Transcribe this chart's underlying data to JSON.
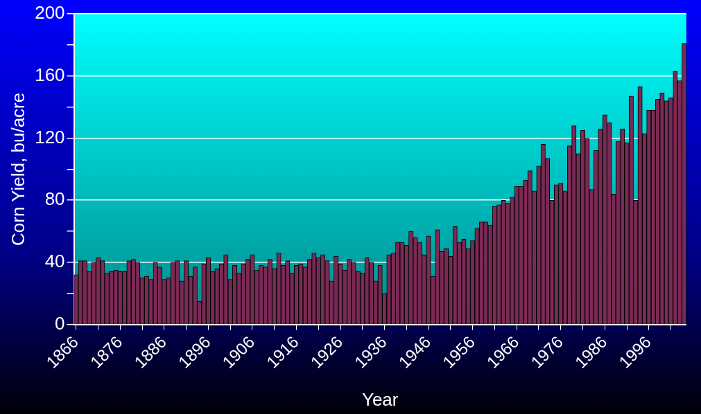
{
  "chart_data": {
    "type": "bar",
    "xlabel": "Year",
    "ylabel": "Corn Yield, bu/acre",
    "categories": [
      "1866",
      null,
      null,
      null,
      null,
      null,
      null,
      null,
      null,
      null,
      "1876",
      null,
      null,
      null,
      null,
      null,
      null,
      null,
      null,
      null,
      "1886",
      null,
      null,
      null,
      null,
      null,
      null,
      null,
      null,
      null,
      "1896",
      null,
      null,
      null,
      null,
      null,
      null,
      null,
      null,
      null,
      "1906",
      null,
      null,
      null,
      null,
      null,
      null,
      null,
      null,
      null,
      "1916",
      null,
      null,
      null,
      null,
      null,
      null,
      null,
      null,
      null,
      "1926",
      null,
      null,
      null,
      null,
      null,
      null,
      null,
      null,
      null,
      "1936",
      null,
      null,
      null,
      null,
      null,
      null,
      null,
      null,
      null,
      "1946",
      null,
      null,
      null,
      null,
      null,
      null,
      null,
      null,
      null,
      "1956",
      null,
      null,
      null,
      null,
      null,
      null,
      null,
      null,
      null,
      "1966",
      null,
      null,
      null,
      null,
      null,
      null,
      null,
      null,
      null,
      "1976",
      null,
      null,
      null,
      null,
      null,
      null,
      null,
      null,
      null,
      "1986",
      null,
      null,
      null,
      null,
      null,
      null,
      null,
      null,
      null,
      "1996",
      null,
      null,
      null,
      null,
      null,
      null,
      null,
      null
    ],
    "values": [
      32,
      41,
      41,
      34,
      40,
      43,
      41,
      33,
      34,
      35,
      34,
      34,
      41,
      42,
      40,
      30,
      31,
      29,
      40,
      37,
      29,
      30,
      40,
      41,
      28,
      41,
      31,
      37,
      15,
      39,
      43,
      34,
      36,
      39,
      45,
      29,
      38,
      33,
      39,
      42,
      45,
      35,
      38,
      37,
      42,
      36,
      46,
      38,
      41,
      33,
      38,
      39,
      37,
      42,
      46,
      43,
      45,
      41,
      28,
      44,
      39,
      35,
      42,
      40,
      34,
      33,
      43,
      40,
      28,
      38,
      20,
      45,
      46,
      53,
      53,
      51,
      60,
      56,
      53,
      45,
      57,
      31,
      61,
      47,
      49,
      44,
      63,
      53,
      55,
      49,
      54,
      62,
      66,
      66,
      64,
      76,
      77,
      80,
      78,
      82,
      89,
      89,
      93,
      99,
      86,
      102,
      116,
      107,
      80,
      90,
      91,
      86,
      115,
      128,
      110,
      125,
      120,
      87,
      112,
      126,
      135,
      130,
      84,
      118,
      126,
      117,
      147,
      80,
      153,
      123,
      138,
      138,
      145,
      149,
      144,
      146,
      163,
      157,
      181
    ],
    "color": "#7a2a55",
    "ylim": [
      0,
      200
    ],
    "yticks": [
      0,
      {
        "value": 20,
        "label": null
      },
      40,
      {
        "value": 60,
        "label": null
      },
      80,
      {
        "value": 100,
        "label": null
      },
      120,
      {
        "value": 140,
        "label": null
      },
      160,
      {
        "value": 180,
        "label": null
      },
      200
    ],
    "grid": "y"
  }
}
